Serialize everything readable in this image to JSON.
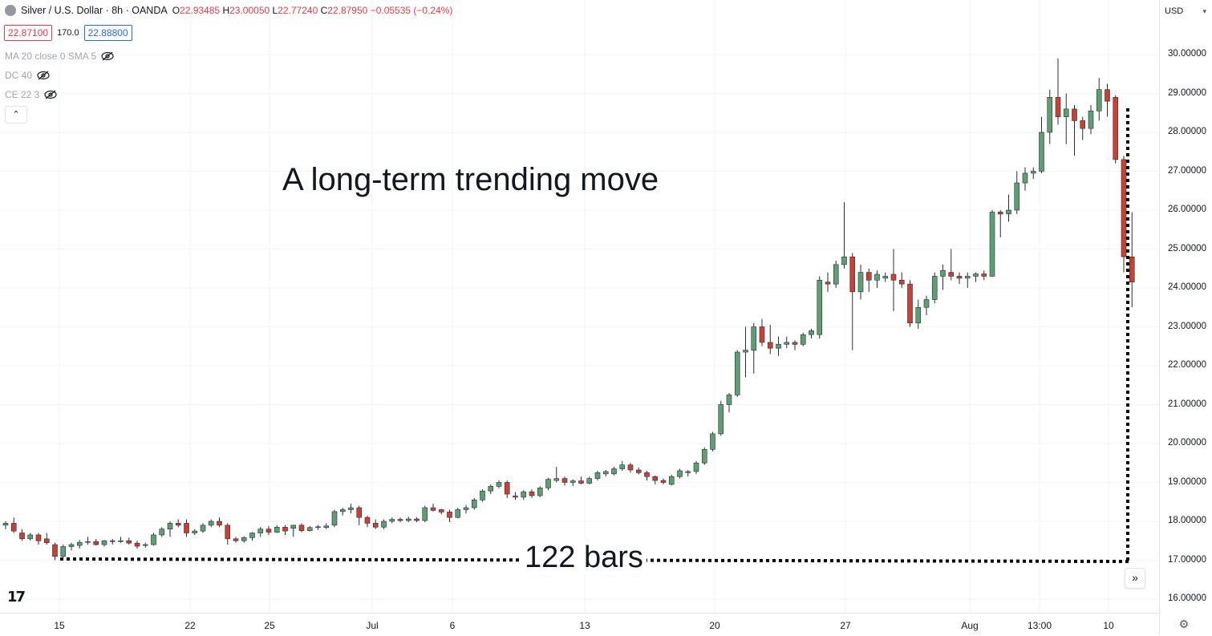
{
  "legend": {
    "symbol": "Silver / U.S. Dollar · 8h · OANDA",
    "o_label": "O",
    "o_value": "22.93485",
    "h_label": "H",
    "h_value": "23.00050",
    "l_label": "L",
    "l_value": "22.77240",
    "c_label": "C",
    "c_value": "22.87950",
    "change": "−0.05535 (−0.24%)"
  },
  "quote": {
    "bid": "22.87100",
    "spread": "170.0",
    "ask": "22.88800"
  },
  "indicators": [
    {
      "label": "MA 20 close 0 SMA 5",
      "icon": "eye-off-icon"
    },
    {
      "label": "DC 40",
      "icon": "eye-off-icon"
    },
    {
      "label": "CE 22 3",
      "icon": "eye-off-icon"
    }
  ],
  "collapse_icon": "chevron-up-icon",
  "currency": "USD",
  "annotations": {
    "title": "A long-term trending move",
    "bars_label": "122 bars"
  },
  "colors": {
    "up": "#5e9e72",
    "down": "#c74236",
    "grid": "#f0f3fa",
    "axis_text": "#131722"
  },
  "chart_data": {
    "type": "candlestick",
    "symbol": "Silver / U.S. Dollar",
    "interval": "8h",
    "ylim": [
      15.8,
      30.4
    ],
    "price_ticks": [
      "16.00000",
      "17.00000",
      "18.00000",
      "19.00000",
      "20.00000",
      "21.00000",
      "22.00000",
      "23.00000",
      "24.00000",
      "25.00000",
      "26.00000",
      "27.00000",
      "28.00000",
      "29.00000",
      "30.00000"
    ],
    "x_ticks": [
      "15",
      "22",
      "25",
      "Jul",
      "6",
      "13",
      "20",
      "27",
      "Aug",
      "13:00",
      "10"
    ],
    "grid": true,
    "candles": [
      [
        17.9,
        18.0,
        17.8,
        17.95
      ],
      [
        17.95,
        18.1,
        17.7,
        17.75
      ],
      [
        17.7,
        17.8,
        17.5,
        17.55
      ],
      [
        17.55,
        17.7,
        17.5,
        17.65
      ],
      [
        17.65,
        17.7,
        17.4,
        17.5
      ],
      [
        17.55,
        17.7,
        17.4,
        17.45
      ],
      [
        17.4,
        17.45,
        17.0,
        17.1
      ],
      [
        17.1,
        17.4,
        17.05,
        17.35
      ],
      [
        17.35,
        17.45,
        17.25,
        17.4
      ],
      [
        17.38,
        17.52,
        17.3,
        17.46
      ],
      [
        17.46,
        17.6,
        17.4,
        17.48
      ],
      [
        17.48,
        17.55,
        17.38,
        17.4
      ],
      [
        17.4,
        17.52,
        17.35,
        17.5
      ],
      [
        17.5,
        17.55,
        17.4,
        17.48
      ],
      [
        17.5,
        17.6,
        17.45,
        17.5
      ],
      [
        17.5,
        17.58,
        17.4,
        17.44
      ],
      [
        17.44,
        17.5,
        17.3,
        17.36
      ],
      [
        17.38,
        17.45,
        17.32,
        17.4
      ],
      [
        17.4,
        17.7,
        17.38,
        17.65
      ],
      [
        17.65,
        17.85,
        17.6,
        17.8
      ],
      [
        17.8,
        18.0,
        17.6,
        17.95
      ],
      [
        17.95,
        18.05,
        17.85,
        17.9
      ],
      [
        17.95,
        18.05,
        17.6,
        17.7
      ],
      [
        17.7,
        17.8,
        17.65,
        17.75
      ],
      [
        17.75,
        17.95,
        17.7,
        17.9
      ],
      [
        17.9,
        18.05,
        17.85,
        18.0
      ],
      [
        18.0,
        18.1,
        17.85,
        17.9
      ],
      [
        17.9,
        17.95,
        17.4,
        17.55
      ],
      [
        17.55,
        17.6,
        17.45,
        17.5
      ],
      [
        17.5,
        17.62,
        17.45,
        17.58
      ],
      [
        17.58,
        17.72,
        17.5,
        17.7
      ],
      [
        17.7,
        17.85,
        17.6,
        17.8
      ],
      [
        17.8,
        17.88,
        17.65,
        17.72
      ],
      [
        17.72,
        17.9,
        17.7,
        17.85
      ],
      [
        17.85,
        17.9,
        17.65,
        17.75
      ],
      [
        17.82,
        17.9,
        17.6,
        17.9
      ],
      [
        17.9,
        17.95,
        17.72,
        17.76
      ],
      [
        17.76,
        17.88,
        17.74,
        17.84
      ],
      [
        17.84,
        17.9,
        17.78,
        17.86
      ],
      [
        17.84,
        17.95,
        17.8,
        17.88
      ],
      [
        17.9,
        18.3,
        17.85,
        18.25
      ],
      [
        18.25,
        18.35,
        18.15,
        18.3
      ],
      [
        18.3,
        18.45,
        18.2,
        18.35
      ],
      [
        18.35,
        18.4,
        17.9,
        18.1
      ],
      [
        18.1,
        18.15,
        17.85,
        17.95
      ],
      [
        17.95,
        18.05,
        17.8,
        17.85
      ],
      [
        17.85,
        18.05,
        17.8,
        18.0
      ],
      [
        18.0,
        18.1,
        17.95,
        18.05
      ],
      [
        18.05,
        18.1,
        17.98,
        18.02
      ],
      [
        18.02,
        18.12,
        17.98,
        18.06
      ],
      [
        18.06,
        18.1,
        17.98,
        18.02
      ],
      [
        18.02,
        18.4,
        17.98,
        18.35
      ],
      [
        18.35,
        18.45,
        18.25,
        18.28
      ],
      [
        18.3,
        18.32,
        18.18,
        18.24
      ],
      [
        18.24,
        18.3,
        17.98,
        18.1
      ],
      [
        18.1,
        18.35,
        18.08,
        18.3
      ],
      [
        18.3,
        18.42,
        18.2,
        18.35
      ],
      [
        18.35,
        18.6,
        18.3,
        18.55
      ],
      [
        18.55,
        18.82,
        18.5,
        18.78
      ],
      [
        18.78,
        18.95,
        18.7,
        18.9
      ],
      [
        18.9,
        19.05,
        18.85,
        19.0
      ],
      [
        19.0,
        19.05,
        18.6,
        18.7
      ],
      [
        18.65,
        18.75,
        18.55,
        18.62
      ],
      [
        18.62,
        18.8,
        18.55,
        18.76
      ],
      [
        18.76,
        18.82,
        18.6,
        18.66
      ],
      [
        18.66,
        18.9,
        18.62,
        18.86
      ],
      [
        18.86,
        19.12,
        18.8,
        19.08
      ],
      [
        19.05,
        19.4,
        19.0,
        19.1
      ],
      [
        19.1,
        19.15,
        18.92,
        19.0
      ],
      [
        19.0,
        19.08,
        18.9,
        19.04
      ],
      [
        19.04,
        19.15,
        18.95,
        18.98
      ],
      [
        18.98,
        19.15,
        18.95,
        19.1
      ],
      [
        19.1,
        19.3,
        19.05,
        19.25
      ],
      [
        19.22,
        19.32,
        19.15,
        19.28
      ],
      [
        19.22,
        19.4,
        19.18,
        19.35
      ],
      [
        19.35,
        19.55,
        19.3,
        19.45
      ],
      [
        19.45,
        19.5,
        19.25,
        19.32
      ],
      [
        19.32,
        19.38,
        19.2,
        19.25
      ],
      [
        19.25,
        19.3,
        19.05,
        19.15
      ],
      [
        19.15,
        19.18,
        18.95,
        19.05
      ],
      [
        19.05,
        19.1,
        18.95,
        19.0
      ],
      [
        18.95,
        19.2,
        18.92,
        19.15
      ],
      [
        19.15,
        19.35,
        19.1,
        19.3
      ],
      [
        19.25,
        19.32,
        19.15,
        19.28
      ],
      [
        19.28,
        19.55,
        19.22,
        19.5
      ],
      [
        19.5,
        19.9,
        19.45,
        19.85
      ],
      [
        19.85,
        20.3,
        19.8,
        20.25
      ],
      [
        20.25,
        21.1,
        20.2,
        21.0
      ],
      [
        21.0,
        21.3,
        20.8,
        21.25
      ],
      [
        21.25,
        22.4,
        21.2,
        22.35
      ],
      [
        22.35,
        23.0,
        21.7,
        22.4
      ],
      [
        22.4,
        23.1,
        21.8,
        23.0
      ],
      [
        23.0,
        23.2,
        22.5,
        22.6
      ],
      [
        22.6,
        23.05,
        22.3,
        22.45
      ],
      [
        22.45,
        22.75,
        22.25,
        22.55
      ],
      [
        22.55,
        22.75,
        22.45,
        22.6
      ],
      [
        22.6,
        22.65,
        22.4,
        22.55
      ],
      [
        22.55,
        22.85,
        22.5,
        22.8
      ],
      [
        22.8,
        22.95,
        22.7,
        22.9
      ],
      [
        22.8,
        24.3,
        22.7,
        24.2
      ],
      [
        24.15,
        24.4,
        23.9,
        24.1
      ],
      [
        24.1,
        24.7,
        24.0,
        24.6
      ],
      [
        24.6,
        26.2,
        24.5,
        24.8
      ],
      [
        24.8,
        24.9,
        22.4,
        23.9
      ],
      [
        23.9,
        24.6,
        23.7,
        24.4
      ],
      [
        24.4,
        24.5,
        23.9,
        24.2
      ],
      [
        24.2,
        24.45,
        24.0,
        24.35
      ],
      [
        24.25,
        24.4,
        24.15,
        24.3
      ],
      [
        24.35,
        25.0,
        23.4,
        24.2
      ],
      [
        24.2,
        24.4,
        24.0,
        24.1
      ],
      [
        24.1,
        24.2,
        23.0,
        23.1
      ],
      [
        23.1,
        23.7,
        22.95,
        23.5
      ],
      [
        23.5,
        23.8,
        23.3,
        23.7
      ],
      [
        23.7,
        24.4,
        23.6,
        24.3
      ],
      [
        24.3,
        24.6,
        23.95,
        24.45
      ],
      [
        24.4,
        25.0,
        24.2,
        24.3
      ],
      [
        24.3,
        24.4,
        24.1,
        24.25
      ],
      [
        24.25,
        24.4,
        24.0,
        24.3
      ],
      [
        24.3,
        24.4,
        24.15,
        24.36
      ],
      [
        24.36,
        24.45,
        24.2,
        24.3
      ],
      [
        24.3,
        26.0,
        24.28,
        25.95
      ],
      [
        25.95,
        26.0,
        25.3,
        25.9
      ],
      [
        25.9,
        26.4,
        25.7,
        26.0
      ],
      [
        26.0,
        27.0,
        25.9,
        26.7
      ],
      [
        26.7,
        27.1,
        26.5,
        26.95
      ],
      [
        26.95,
        27.1,
        26.8,
        27.0
      ],
      [
        27.0,
        28.4,
        26.95,
        28.0
      ],
      [
        28.0,
        29.1,
        27.7,
        28.9
      ],
      [
        28.9,
        29.9,
        28.2,
        28.4
      ],
      [
        28.4,
        29.0,
        27.7,
        28.6
      ],
      [
        28.6,
        28.7,
        27.4,
        28.3
      ],
      [
        28.3,
        28.4,
        27.8,
        28.1
      ],
      [
        28.1,
        28.7,
        27.95,
        28.55
      ],
      [
        28.55,
        29.4,
        28.3,
        29.1
      ],
      [
        29.1,
        29.25,
        28.4,
        28.8
      ],
      [
        28.9,
        28.95,
        27.2,
        27.3
      ],
      [
        27.3,
        27.4,
        24.4,
        24.8
      ],
      [
        24.8,
        25.95,
        23.5,
        24.15
      ]
    ]
  }
}
